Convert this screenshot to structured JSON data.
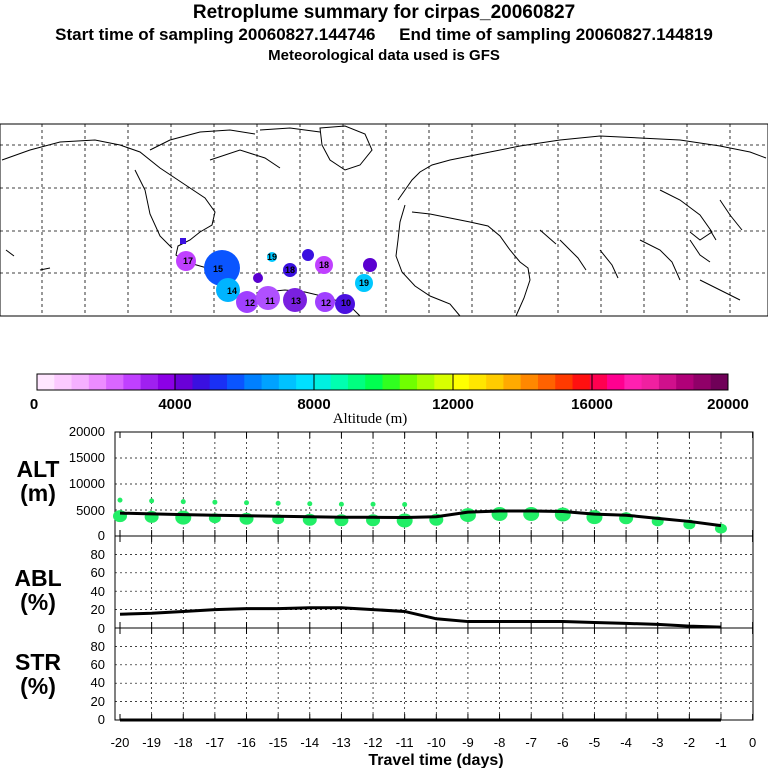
{
  "header": {
    "title": "Retroplume summary for cirpas_20060827",
    "subtitle": "Start time of sampling 20060827.144746     End time of sampling 20060827.144819",
    "met": "Meteorological data used is GFS"
  },
  "colorbar": {
    "label": "Altitude (m)",
    "ticks": [
      "0",
      "4000",
      "8000",
      "12000",
      "16000",
      "20000"
    ],
    "colors": [
      "#ffe6ff",
      "#fccaff",
      "#f5b0ff",
      "#ec8cff",
      "#d966ff",
      "#c040ff",
      "#a020f0",
      "#8c00e6",
      "#6a00d8",
      "#3a10e0",
      "#1a30f5",
      "#0a55ff",
      "#0080ff",
      "#00a2ff",
      "#00c2ff",
      "#00e0ff",
      "#00f0e0",
      "#00ffb0",
      "#00ff80",
      "#00ff50",
      "#30ff20",
      "#70ff00",
      "#a8ff00",
      "#d8ff00",
      "#ffff00",
      "#ffe600",
      "#ffcc00",
      "#ffaa00",
      "#ff8800",
      "#ff6200",
      "#ff3a00",
      "#ff1010",
      "#ff0050",
      "#ff0090",
      "#ff20b0",
      "#f020a0",
      "#d0108c",
      "#b00078",
      "#900068",
      "#700058"
    ]
  },
  "map": {
    "markers": [
      {
        "label": "19",
        "color": "#00c8ff"
      },
      {
        "label": "18",
        "color": "#3a10e0"
      },
      {
        "label": "17",
        "color": "#c040ff"
      },
      {
        "label": "16",
        "color": "#5a00d0"
      },
      {
        "label": "15",
        "color": "#0a55ff"
      },
      {
        "label": "14",
        "color": "#00b4ff"
      },
      {
        "label": "13",
        "color": "#7a20e0"
      },
      {
        "label": "12",
        "color": "#a040ff"
      },
      {
        "label": "11",
        "color": "#b050ff"
      },
      {
        "label": "10",
        "color": "#4a10e0"
      }
    ]
  },
  "panels": {
    "alt": {
      "label1": "ALT",
      "label2": "(m)",
      "yticks": [
        "0",
        "5000",
        "10000",
        "15000",
        "20000"
      ]
    },
    "abl": {
      "label1": "ABL",
      "label2": "(%)",
      "yticks": [
        "0",
        "20",
        "40",
        "60",
        "80"
      ]
    },
    "str": {
      "label1": "STR",
      "label2": "(%)",
      "yticks": [
        "0",
        "20",
        "40",
        "60",
        "80"
      ]
    }
  },
  "chart_data": {
    "type": "line",
    "xlabel": "Travel time (days)",
    "xticks": [
      "-20",
      "-19",
      "-18",
      "-17",
      "-16",
      "-15",
      "-14",
      "-13",
      "-12",
      "-11",
      "-10",
      "-9",
      "-8",
      "-7",
      "-6",
      "-5",
      "-4",
      "-3",
      "-2",
      "-1",
      "0"
    ],
    "x": [
      -20,
      -19,
      -18,
      -17,
      -16,
      -15,
      -14,
      -13,
      -12,
      -11,
      -10,
      -9,
      -8,
      -7,
      -6,
      -5,
      -4,
      -3,
      -2,
      -1
    ],
    "series": [
      {
        "name": "ALT mean altitude (m)",
        "values": [
          4400,
          4250,
          4100,
          4000,
          3900,
          3800,
          3700,
          3600,
          3600,
          3550,
          3700,
          4600,
          4800,
          4800,
          4700,
          4200,
          4000,
          3400,
          2800,
          2000
        ]
      },
      {
        "name": "ABL (%)",
        "values": [
          15,
          16,
          18,
          20,
          21,
          21,
          22,
          22,
          20,
          18,
          10,
          7,
          7,
          7,
          7,
          6,
          5,
          4,
          2,
          1
        ]
      },
      {
        "name": "STR (%)",
        "values": [
          0,
          0,
          0,
          0,
          0,
          0,
          0,
          0,
          0,
          0,
          0,
          0,
          0,
          0,
          0,
          0,
          0,
          0,
          0,
          0
        ]
      }
    ],
    "alt_ylim": [
      0,
      20000
    ],
    "pct_ylim": [
      0,
      100
    ]
  }
}
